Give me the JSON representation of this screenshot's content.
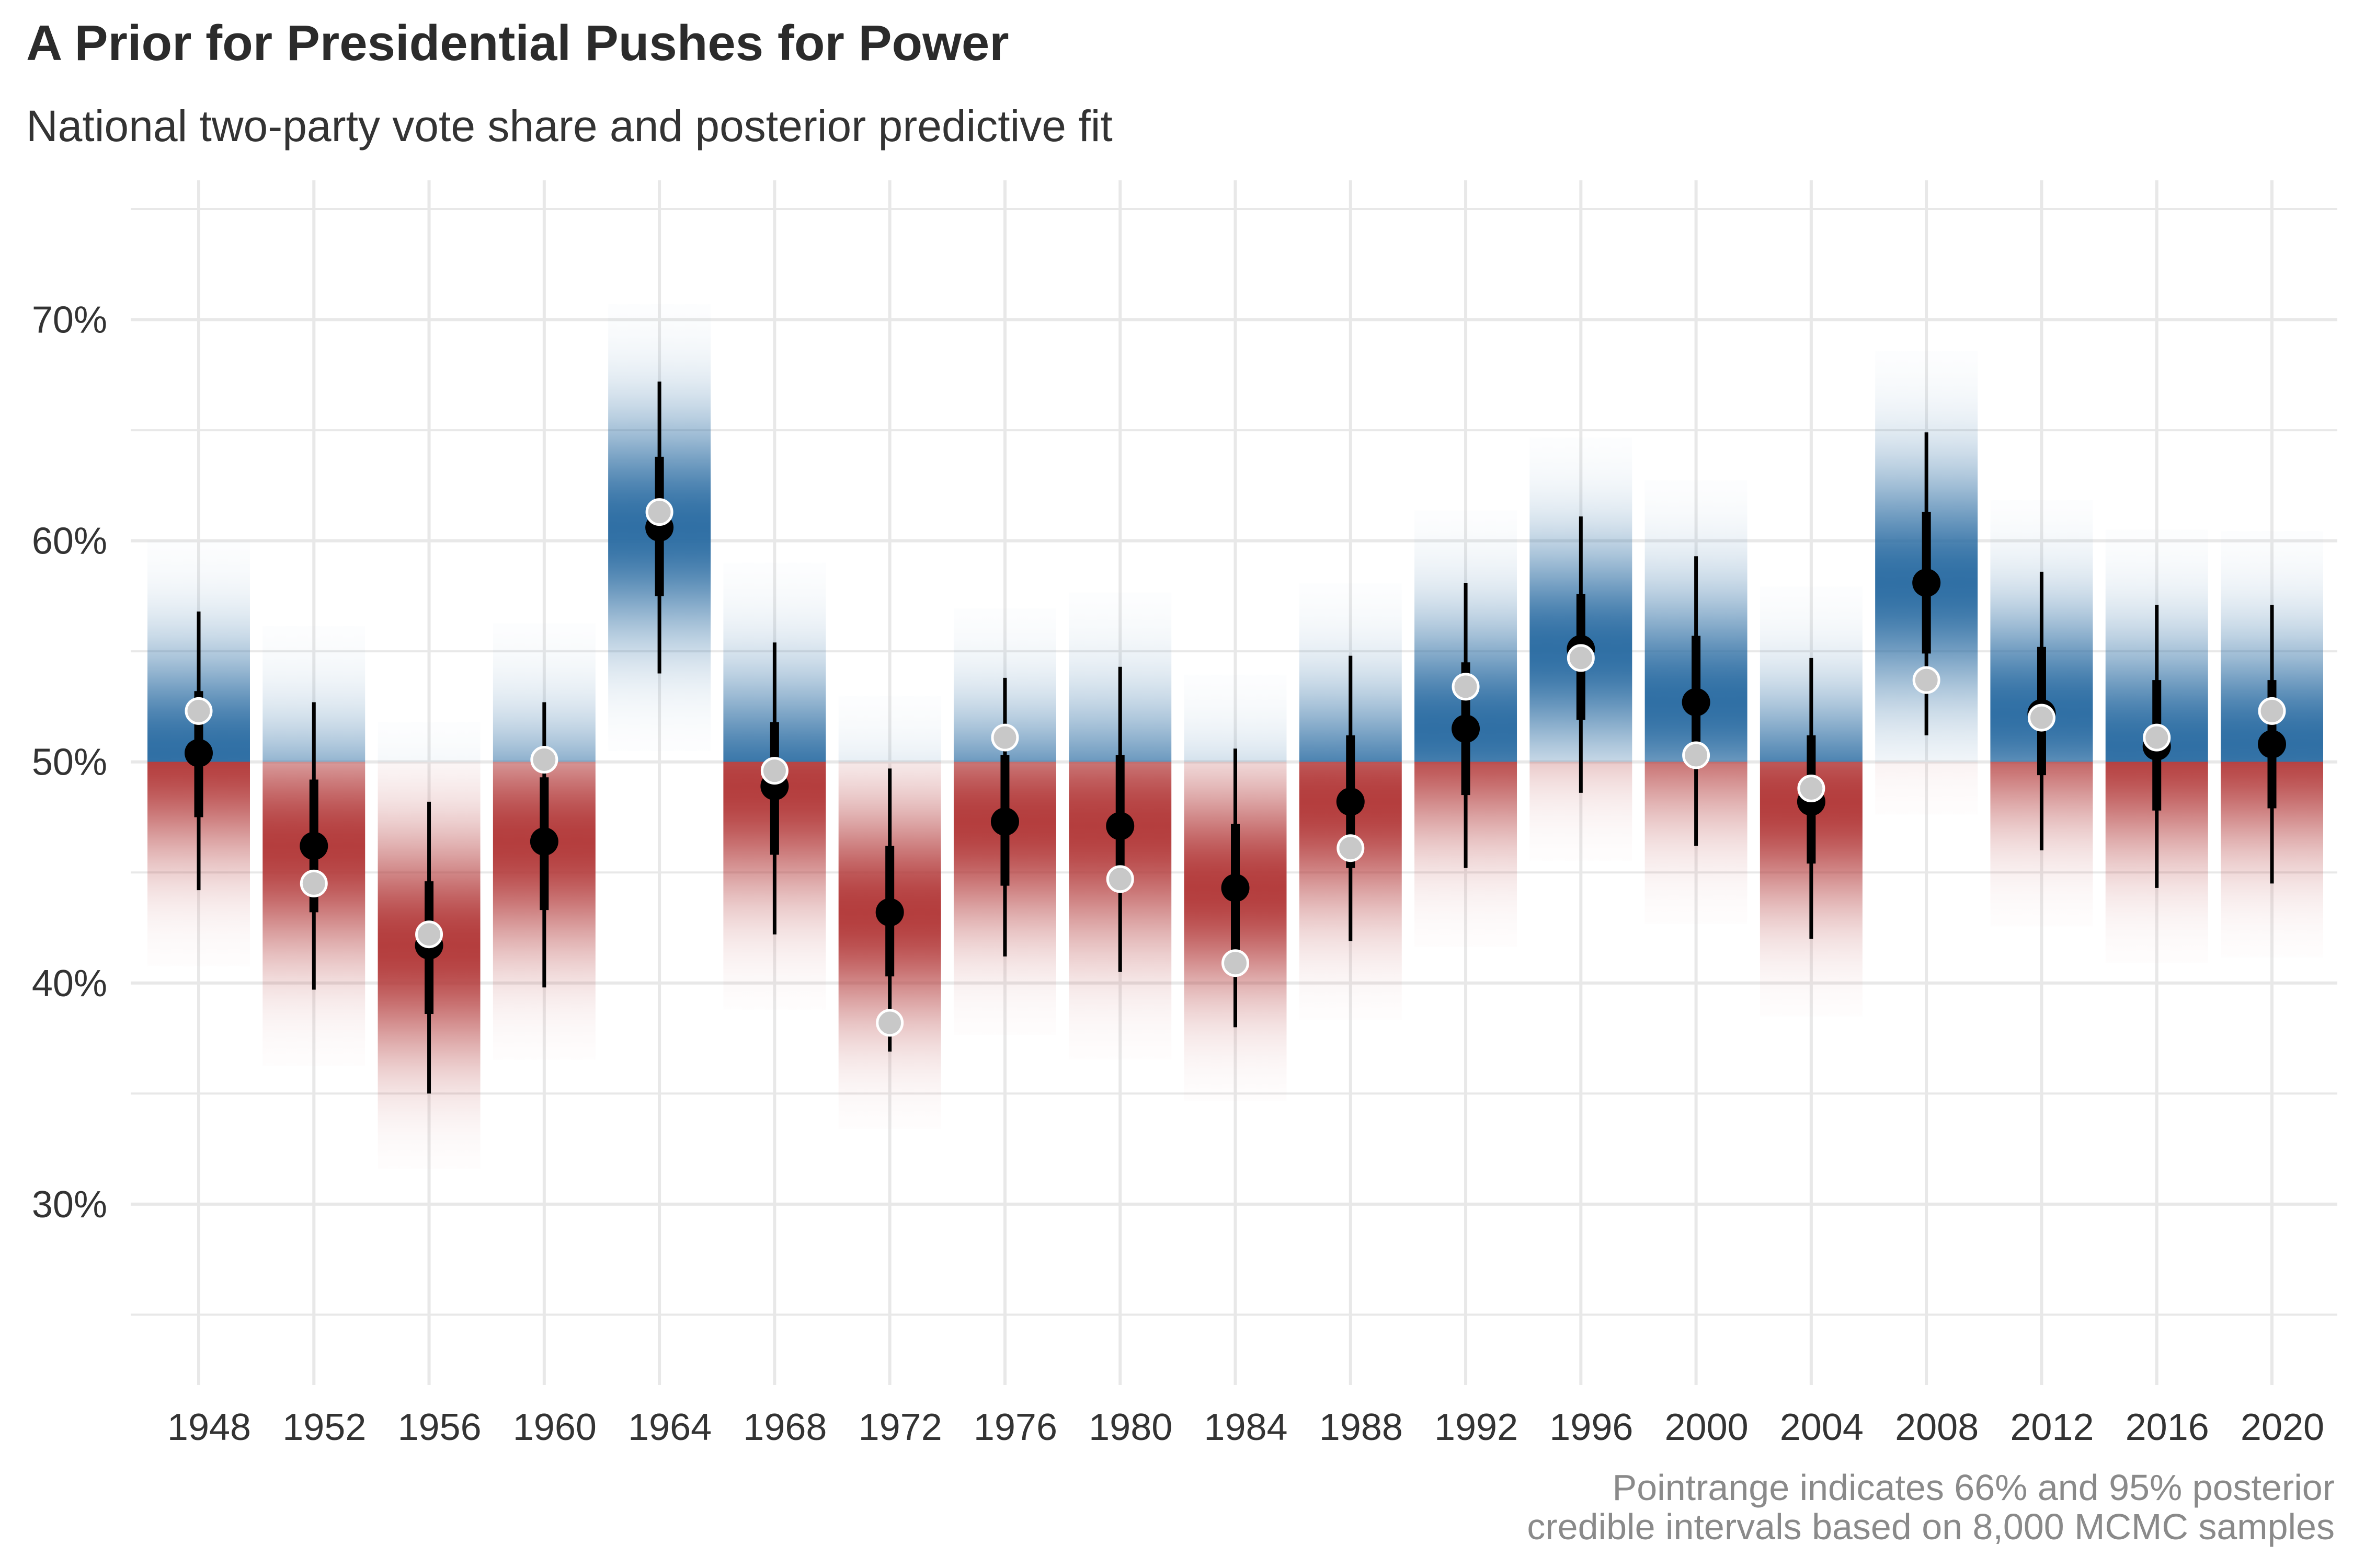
{
  "chart_data": {
    "type": "scatter",
    "title": "A Prior for Presidential Pushes for Power",
    "subtitle": "National two-party vote share and posterior predictive fit",
    "caption_lines": [
      "Pointrange indicates 66% and 95% posterior",
      "credible intervals based on 8,000 MCMC samples"
    ],
    "x": [
      "1948",
      "1952",
      "1956",
      "1960",
      "1964",
      "1968",
      "1972",
      "1976",
      "1980",
      "1984",
      "1988",
      "1992",
      "1996",
      "2000",
      "2004",
      "2008",
      "2012",
      "2016",
      "2020"
    ],
    "ylim": [
      23,
      75
    ],
    "y_ticks": [
      30,
      40,
      50,
      60,
      70
    ],
    "y_tick_labels": [
      "30%",
      "40%",
      "50%",
      "60%",
      "70%"
    ],
    "grid": true,
    "threshold": 50,
    "colors": {
      "above": "#2c6da3",
      "below": "#b33a3a",
      "posterior": "#000000",
      "observed": "#c8c8c8",
      "grid": "#e8e8e8"
    },
    "series": [
      {
        "role": "posterior median",
        "values": [
          50.4,
          46.2,
          41.7,
          46.4,
          60.6,
          48.9,
          43.2,
          47.3,
          47.1,
          44.3,
          48.2,
          51.5,
          55.1,
          52.7,
          48.2,
          58.1,
          52.2,
          50.7,
          50.8
        ],
        "ci66_low": [
          47.5,
          43.2,
          38.6,
          43.3,
          57.5,
          45.8,
          40.3,
          44.4,
          44.1,
          41.2,
          45.2,
          48.5,
          51.9,
          49.7,
          45.4,
          54.9,
          49.4,
          47.8,
          47.9
        ],
        "ci66_high": [
          53.2,
          49.2,
          44.6,
          49.3,
          63.8,
          51.8,
          46.2,
          50.3,
          50.3,
          47.2,
          51.2,
          54.5,
          57.6,
          55.7,
          51.2,
          61.3,
          55.2,
          53.7,
          53.7
        ],
        "ci95_low": [
          44.2,
          39.7,
          35.0,
          39.8,
          54.0,
          42.2,
          36.9,
          41.2,
          40.5,
          38.0,
          41.9,
          45.2,
          48.6,
          46.2,
          42.0,
          51.2,
          46.0,
          44.3,
          44.5
        ],
        "ci95_high": [
          56.8,
          52.7,
          48.2,
          52.7,
          67.2,
          55.4,
          49.7,
          53.8,
          54.3,
          50.6,
          54.8,
          58.1,
          61.1,
          59.3,
          54.7,
          64.9,
          58.6,
          57.1,
          57.1
        ]
      },
      {
        "role": "observed",
        "values": [
          52.3,
          44.5,
          42.2,
          50.1,
          61.3,
          49.6,
          38.2,
          51.1,
          44.7,
          40.9,
          46.1,
          53.4,
          54.7,
          50.3,
          48.8,
          53.7,
          52.0,
          51.1,
          52.3
        ]
      }
    ]
  }
}
